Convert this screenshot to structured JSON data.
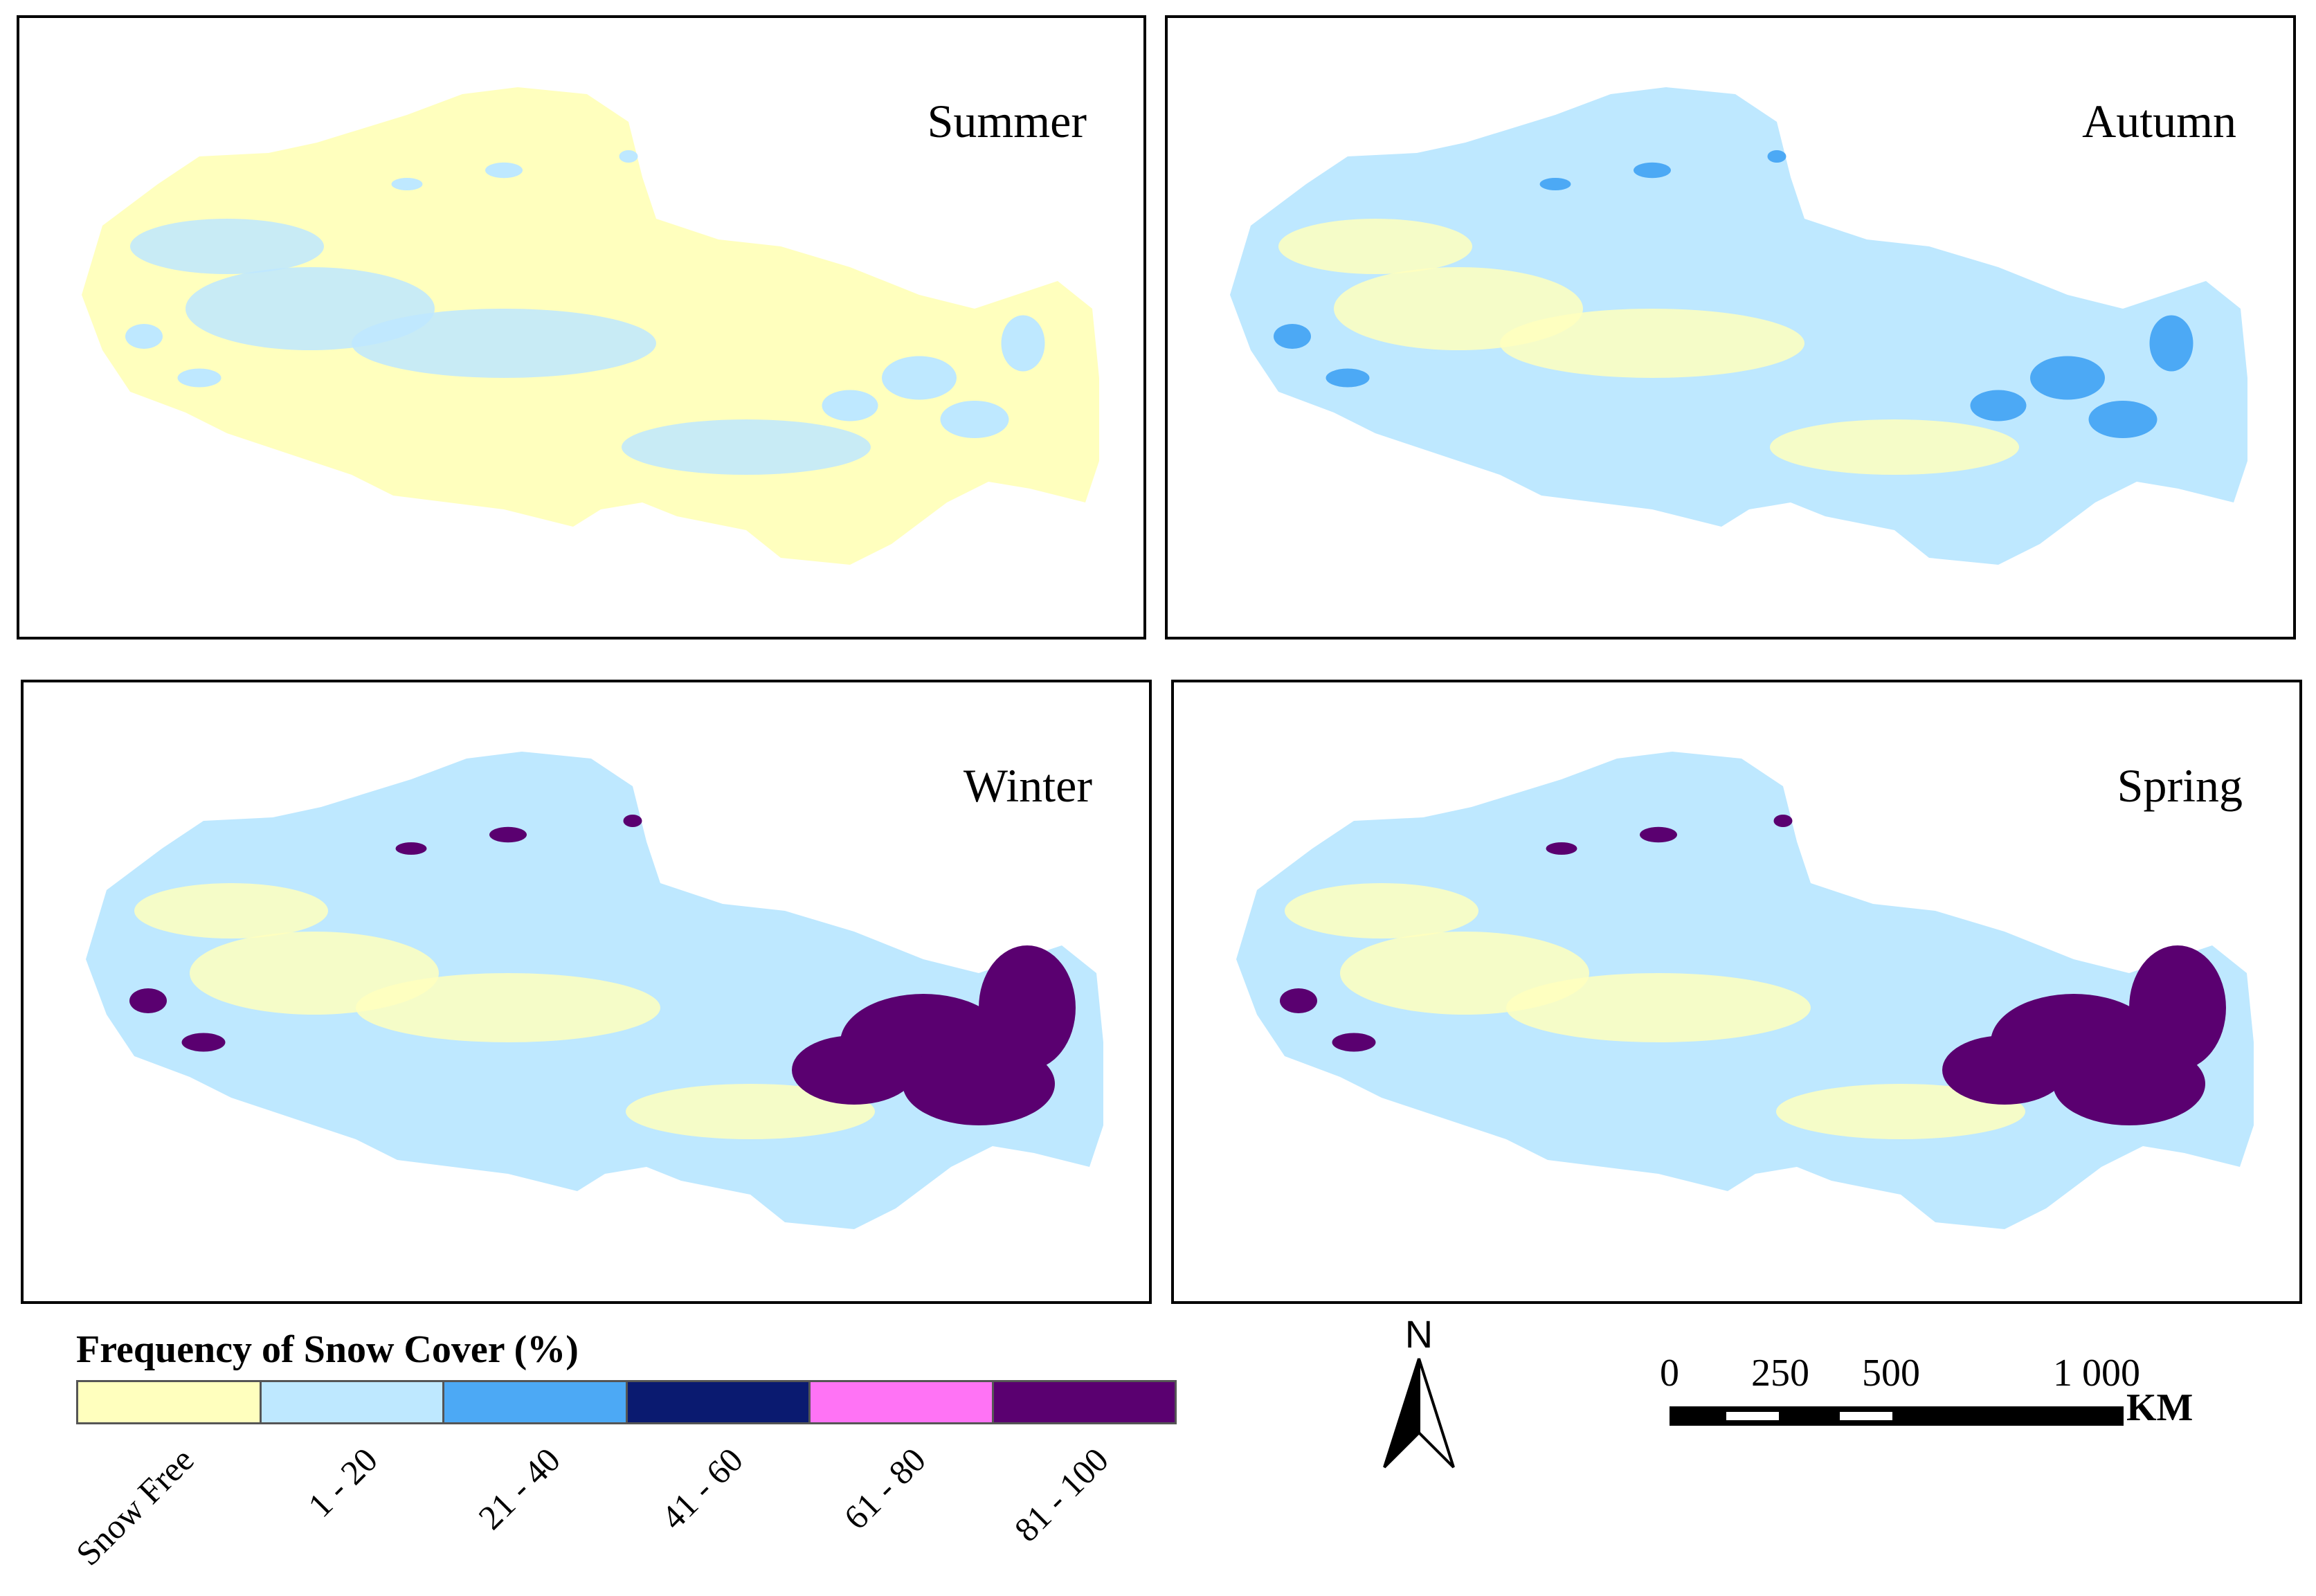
{
  "panels": [
    {
      "season": "Summer",
      "fill_class": 0,
      "patch_class": 1
    },
    {
      "season": "Autumn",
      "fill_class": 1,
      "patch_class": 2
    },
    {
      "season": "Winter",
      "fill_class": 1,
      "patch_class": 5
    },
    {
      "season": "Spring",
      "fill_class": 1,
      "patch_class": 5
    }
  ],
  "legend": {
    "title": "Frequency of Snow Cover (%)",
    "classes": [
      {
        "label": "Snow Free",
        "color": "#FFFFBE"
      },
      {
        "label": "1 - 20",
        "color": "#BEE8FF"
      },
      {
        "label": "21 - 40",
        "color": "#4CA9F5"
      },
      {
        "label": "41 - 60",
        "color": "#0A1A70"
      },
      {
        "label": "61 - 80",
        "color": "#FF73F5"
      },
      {
        "label": "81 - 100",
        "color": "#5A0070"
      }
    ]
  },
  "north_arrow": {
    "label": "N"
  },
  "scale_bar": {
    "ticks": [
      "0",
      "250",
      "500",
      "1 000"
    ],
    "unit": "KM"
  }
}
